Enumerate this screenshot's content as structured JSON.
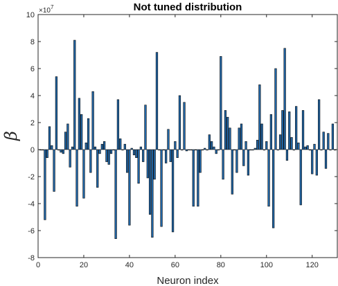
{
  "chart_data": {
    "type": "bar",
    "title": "Not tuned distribution",
    "xlabel": "Neuron index",
    "ylabel": "β",
    "y_exponent_label": "×10",
    "y_exponent_power": "7",
    "scale": 10000000,
    "xlim": [
      0,
      131
    ],
    "ylim": [
      -8,
      10
    ],
    "xticks": [
      0,
      20,
      40,
      60,
      80,
      100,
      120
    ],
    "yticks": [
      -8,
      -6,
      -4,
      -2,
      0,
      2,
      4,
      6,
      8,
      10
    ],
    "grid": false,
    "bar_color": "#2166a6",
    "bar_edge_color": "#0b0b0b",
    "x": [
      1,
      2,
      3,
      4,
      5,
      6,
      7,
      8,
      9,
      10,
      11,
      12,
      13,
      14,
      15,
      16,
      17,
      18,
      19,
      20,
      21,
      22,
      23,
      24,
      25,
      26,
      27,
      28,
      29,
      30,
      31,
      32,
      33,
      34,
      35,
      36,
      37,
      38,
      39,
      40,
      41,
      42,
      43,
      44,
      45,
      46,
      47,
      48,
      49,
      50,
      51,
      52,
      53,
      54,
      55,
      56,
      57,
      58,
      59,
      60,
      61,
      62,
      63,
      64,
      65,
      66,
      67,
      68,
      69,
      70,
      71,
      72,
      73,
      74,
      75,
      76,
      77,
      78,
      79,
      80,
      81,
      82,
      83,
      84,
      85,
      86,
      87,
      88,
      89,
      90,
      91,
      92,
      93,
      94,
      95,
      96,
      97,
      98,
      99,
      100,
      101,
      102,
      103,
      104,
      105,
      106,
      107,
      108,
      109,
      110,
      111,
      112,
      113,
      114,
      115,
      116,
      117,
      118,
      119,
      120,
      121,
      122,
      123,
      124,
      125,
      126,
      127,
      128,
      129,
      130
    ],
    "values": [
      0,
      0,
      -5.2,
      -0.6,
      1.7,
      0.3,
      -3.1,
      5.4,
      0,
      -0.2,
      -0.3,
      1.3,
      1.9,
      -1.3,
      0.2,
      8.1,
      -4.2,
      3.8,
      2.6,
      -3.6,
      0.5,
      2.3,
      -1.7,
      4.3,
      0.2,
      -2.8,
      -0.3,
      0.4,
      0.6,
      -0.9,
      -1.1,
      -0.3,
      0,
      -6.6,
      3.7,
      0.8,
      0,
      0.4,
      -1.7,
      -5.6,
      0.1,
      -0.4,
      -0.6,
      -2.5,
      0.2,
      -0.9,
      3.3,
      -2.1,
      -4.8,
      -6.5,
      -2.2,
      7.2,
      0,
      -5.7,
      0,
      -1.0,
      1.5,
      -0.9,
      -6.1,
      0.6,
      -0.6,
      4.0,
      0,
      3.5,
      -0.1,
      0,
      0,
      -4.2,
      0,
      -4.2,
      -1.7,
      0,
      0.1,
      0,
      1.1,
      0.6,
      0.2,
      -0.3,
      0,
      6.9,
      -2.2,
      2.9,
      2.4,
      1.6,
      -3.3,
      0,
      -1.7,
      1.6,
      1.9,
      -1.2,
      0.6,
      -1.9,
      0,
      0,
      0.1,
      0.7,
      4.8,
      1.9,
      0,
      0.6,
      -4.2,
      2.6,
      -5.8,
      6.0,
      0,
      1.1,
      2.9,
      7.5,
      -0.8,
      2.8,
      0.9,
      0,
      3.2,
      0.5,
      -4.1,
      2.9,
      0.2,
      0.3,
      0,
      -1.8,
      0.4,
      -1.9,
      3.7,
      0,
      1.3,
      -1.4,
      1.2,
      0,
      1.9,
      0
    ]
  }
}
